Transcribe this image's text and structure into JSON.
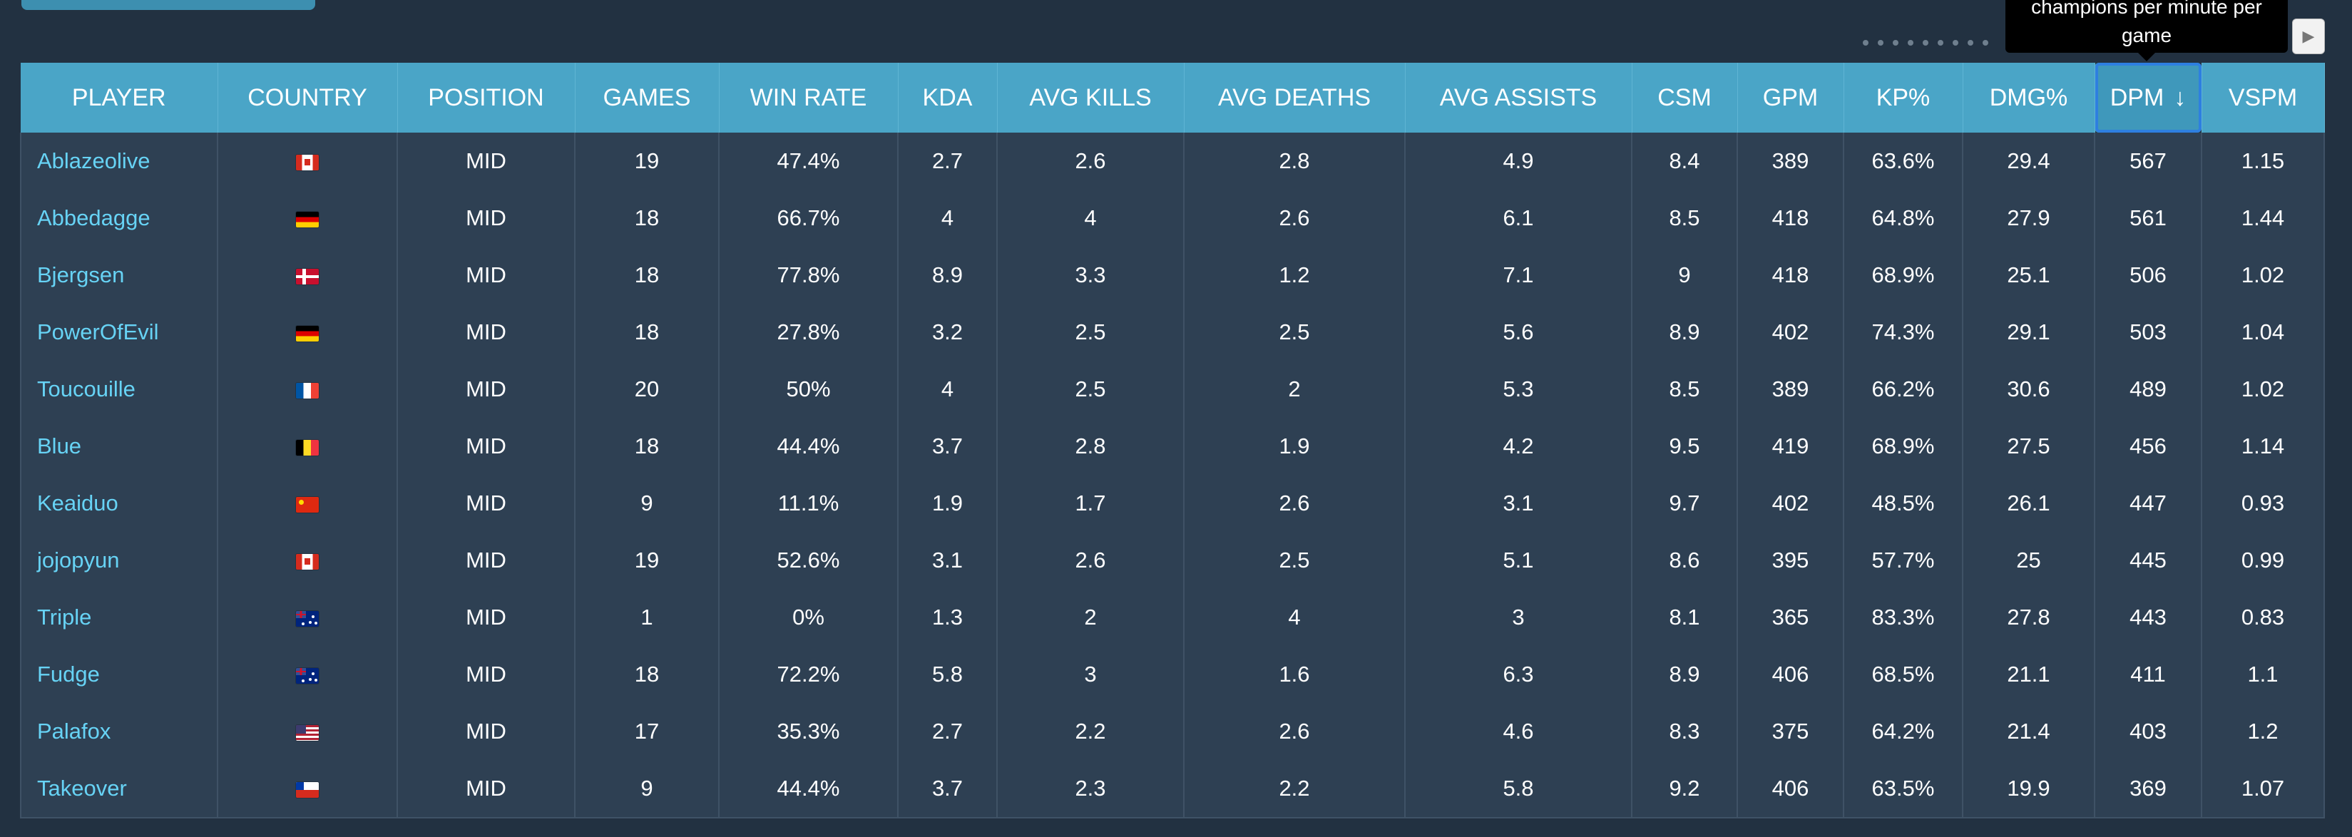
{
  "tooltip": {
    "text": "champions per minute per game"
  },
  "table": {
    "columns": [
      "PLAYER",
      "COUNTRY",
      "POSITION",
      "GAMES",
      "WIN RATE",
      "KDA",
      "AVG KILLS",
      "AVG DEATHS",
      "AVG ASSISTS",
      "CSM",
      "GPM",
      "KP%",
      "DMG%",
      "DPM",
      "VSPM"
    ],
    "sort_arrow": "↓",
    "rows": [
      {
        "player": "Ablazeolive",
        "flag": "ca",
        "position": "MID",
        "games": "19",
        "winrate": "47.4%",
        "kda": "2.7",
        "kills": "2.6",
        "deaths": "2.8",
        "assists": "4.9",
        "csm": "8.4",
        "gpm": "389",
        "kp": "63.6%",
        "dmg": "29.4",
        "dpm": "567",
        "vspm": "1.15"
      },
      {
        "player": "Abbedagge",
        "flag": "de",
        "position": "MID",
        "games": "18",
        "winrate": "66.7%",
        "kda": "4",
        "kills": "4",
        "deaths": "2.6",
        "assists": "6.1",
        "csm": "8.5",
        "gpm": "418",
        "kp": "64.8%",
        "dmg": "27.9",
        "dpm": "561",
        "vspm": "1.44"
      },
      {
        "player": "Bjergsen",
        "flag": "dk",
        "position": "MID",
        "games": "18",
        "winrate": "77.8%",
        "kda": "8.9",
        "kills": "3.3",
        "deaths": "1.2",
        "assists": "7.1",
        "csm": "9",
        "gpm": "418",
        "kp": "68.9%",
        "dmg": "25.1",
        "dpm": "506",
        "vspm": "1.02"
      },
      {
        "player": "PowerOfEvil",
        "flag": "de",
        "position": "MID",
        "games": "18",
        "winrate": "27.8%",
        "kda": "3.2",
        "kills": "2.5",
        "deaths": "2.5",
        "assists": "5.6",
        "csm": "8.9",
        "gpm": "402",
        "kp": "74.3%",
        "dmg": "29.1",
        "dpm": "503",
        "vspm": "1.04"
      },
      {
        "player": "Toucouille",
        "flag": "fr",
        "position": "MID",
        "games": "20",
        "winrate": "50%",
        "kda": "4",
        "kills": "2.5",
        "deaths": "2",
        "assists": "5.3",
        "csm": "8.5",
        "gpm": "389",
        "kp": "66.2%",
        "dmg": "30.6",
        "dpm": "489",
        "vspm": "1.02"
      },
      {
        "player": "Blue",
        "flag": "be",
        "position": "MID",
        "games": "18",
        "winrate": "44.4%",
        "kda": "3.7",
        "kills": "2.8",
        "deaths": "1.9",
        "assists": "4.2",
        "csm": "9.5",
        "gpm": "419",
        "kp": "68.9%",
        "dmg": "27.5",
        "dpm": "456",
        "vspm": "1.14"
      },
      {
        "player": "Keaiduo",
        "flag": "cn",
        "position": "MID",
        "games": "9",
        "winrate": "11.1%",
        "kda": "1.9",
        "kills": "1.7",
        "deaths": "2.6",
        "assists": "3.1",
        "csm": "9.7",
        "gpm": "402",
        "kp": "48.5%",
        "dmg": "26.1",
        "dpm": "447",
        "vspm": "0.93"
      },
      {
        "player": "jojopyun",
        "flag": "ca",
        "position": "MID",
        "games": "19",
        "winrate": "52.6%",
        "kda": "3.1",
        "kills": "2.6",
        "deaths": "2.5",
        "assists": "5.1",
        "csm": "8.6",
        "gpm": "395",
        "kp": "57.7%",
        "dmg": "25",
        "dpm": "445",
        "vspm": "0.99"
      },
      {
        "player": "Triple",
        "flag": "au",
        "position": "MID",
        "games": "1",
        "winrate": "0%",
        "kda": "1.3",
        "kills": "2",
        "deaths": "4",
        "assists": "3",
        "csm": "8.1",
        "gpm": "365",
        "kp": "83.3%",
        "dmg": "27.8",
        "dpm": "443",
        "vspm": "0.83"
      },
      {
        "player": "Fudge",
        "flag": "au",
        "position": "MID",
        "games": "18",
        "winrate": "72.2%",
        "kda": "5.8",
        "kills": "3",
        "deaths": "1.6",
        "assists": "6.3",
        "csm": "8.9",
        "gpm": "406",
        "kp": "68.5%",
        "dmg": "21.1",
        "dpm": "411",
        "vspm": "1.1"
      },
      {
        "player": "Palafox",
        "flag": "us",
        "position": "MID",
        "games": "17",
        "winrate": "35.3%",
        "kda": "2.7",
        "kills": "2.2",
        "deaths": "2.6",
        "assists": "4.6",
        "csm": "8.3",
        "gpm": "375",
        "kp": "64.2%",
        "dmg": "21.4",
        "dpm": "403",
        "vspm": "1.2"
      },
      {
        "player": "Takeover",
        "flag": "cl",
        "position": "MID",
        "games": "9",
        "winrate": "44.4%",
        "kda": "3.7",
        "kills": "2.3",
        "deaths": "2.2",
        "assists": "5.8",
        "csm": "9.2",
        "gpm": "406",
        "kp": "63.5%",
        "dmg": "19.9",
        "dpm": "369",
        "vspm": "1.07"
      }
    ]
  },
  "colors": {
    "header_bg": "#4aa5c7",
    "row_bg": "#2e4053",
    "player_link": "#67d3f5",
    "sorted_outline": "#2e7fe0"
  }
}
